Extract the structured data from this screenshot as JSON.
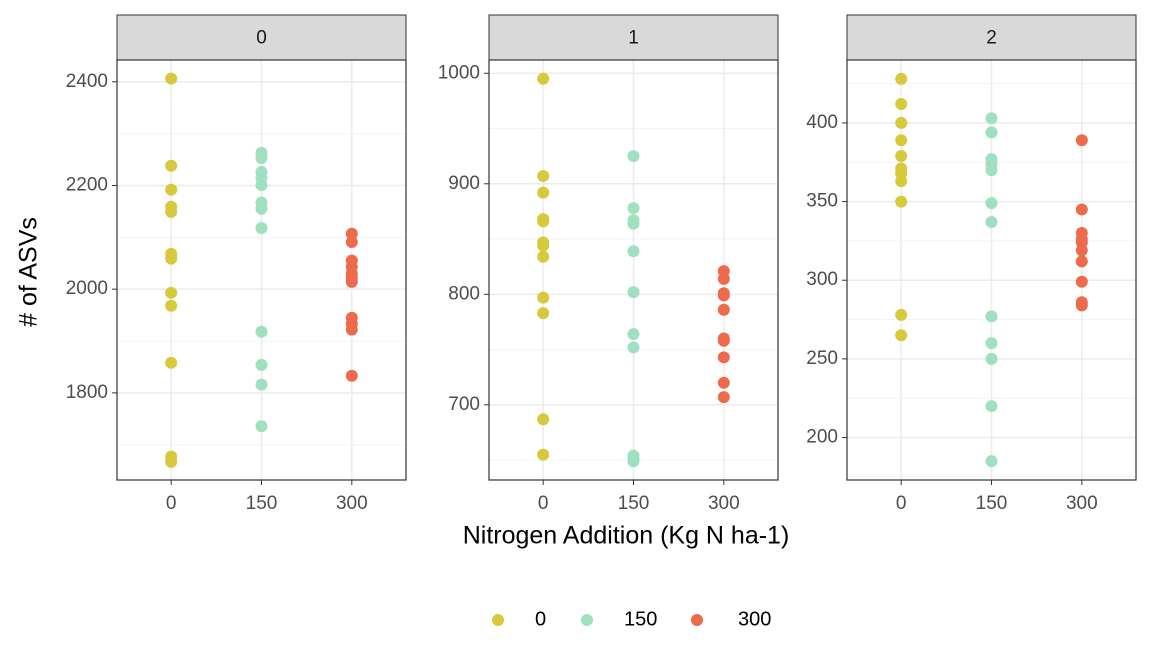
{
  "xlabel": "Nitrogen Addition (Kg N ha-1)",
  "ylabel": "# of ASVs",
  "chart_data": [
    {
      "type": "scatter",
      "title": "0",
      "grid": true,
      "xlim": [
        -90,
        390
      ],
      "xticks": [
        0,
        150,
        300
      ],
      "ylim": [
        1632,
        2442
      ],
      "yticks": [
        1800,
        2000,
        2200,
        2400
      ],
      "series": [
        {
          "name": "0",
          "color": "#d6c93c",
          "x": [
            0,
            0,
            0,
            0,
            0,
            0,
            0,
            0,
            0,
            0,
            0,
            0
          ],
          "values": [
            2406,
            2238,
            2192,
            2159,
            2149,
            2068,
            2059,
            1993,
            1968,
            1858,
            1677,
            1667
          ]
        },
        {
          "name": "150",
          "color": "#9fe0c1",
          "x": [
            150,
            150,
            150,
            150,
            150,
            150,
            150,
            150,
            150,
            150,
            150,
            150
          ],
          "values": [
            2263,
            2253,
            2226,
            2215,
            2201,
            2167,
            2155,
            2118,
            1918,
            1854,
            1816,
            1736
          ]
        },
        {
          "name": "300",
          "color": "#ee6a4d",
          "x": [
            300,
            300,
            300,
            300,
            300,
            300,
            300,
            300,
            300,
            300,
            300
          ],
          "values": [
            2107,
            2091,
            2055,
            2043,
            2030,
            2022,
            2014,
            1945,
            1933,
            1922,
            1833
          ]
        }
      ]
    },
    {
      "type": "scatter",
      "title": "1",
      "grid": true,
      "xlim": [
        -90,
        390
      ],
      "xticks": [
        0,
        150,
        300
      ],
      "ylim": [
        632,
        1012
      ],
      "yticks": [
        700,
        800,
        900,
        1000
      ],
      "series": [
        {
          "name": "0",
          "color": "#d6c93c",
          "x": [
            0,
            0,
            0,
            0,
            0,
            0,
            0,
            0,
            0,
            0,
            0,
            0
          ],
          "values": [
            995,
            907,
            892,
            868,
            866,
            847,
            844,
            834,
            797,
            783,
            687,
            655
          ]
        },
        {
          "name": "150",
          "color": "#9fe0c1",
          "x": [
            150,
            150,
            150,
            150,
            150,
            150,
            150,
            150,
            150,
            150,
            150
          ],
          "values": [
            925,
            878,
            867,
            864,
            839,
            802,
            764,
            752,
            654,
            651,
            649
          ]
        },
        {
          "name": "300",
          "color": "#ee6a4d",
          "x": [
            300,
            300,
            300,
            300,
            300,
            300,
            300,
            300,
            300,
            300
          ],
          "values": [
            821,
            814,
            801,
            799,
            786,
            760,
            758,
            743,
            720,
            707
          ]
        }
      ]
    },
    {
      "type": "scatter",
      "title": "2",
      "grid": true,
      "xlim": [
        -90,
        390
      ],
      "xticks": [
        0,
        150,
        300
      ],
      "ylim": [
        173,
        440
      ],
      "yticks": [
        200,
        250,
        300,
        350,
        400
      ],
      "series": [
        {
          "name": "0",
          "color": "#d6c93c",
          "x": [
            0,
            0,
            0,
            0,
            0,
            0,
            0,
            0,
            0,
            0,
            0
          ],
          "values": [
            428,
            412,
            400,
            389,
            379,
            371,
            368,
            363,
            350,
            278,
            265
          ]
        },
        {
          "name": "150",
          "color": "#9fe0c1",
          "x": [
            150,
            150,
            150,
            150,
            150,
            150,
            150,
            150,
            150,
            150,
            150,
            150
          ],
          "values": [
            403,
            394,
            377,
            374,
            370,
            349,
            337,
            277,
            260,
            250,
            220,
            185
          ]
        },
        {
          "name": "300",
          "color": "#ee6a4d",
          "x": [
            300,
            300,
            300,
            300,
            300,
            300,
            300,
            300,
            300,
            300
          ],
          "values": [
            389,
            345,
            330,
            326,
            324,
            319,
            312,
            299,
            286,
            284
          ]
        }
      ]
    }
  ]
}
